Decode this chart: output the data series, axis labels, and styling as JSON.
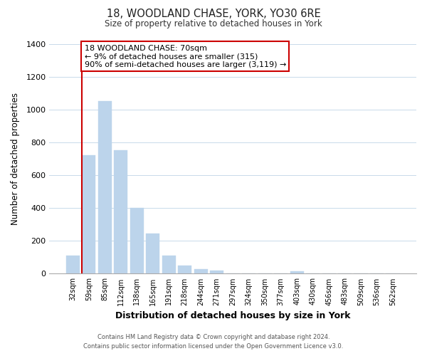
{
  "title": "18, WOODLAND CHASE, YORK, YO30 6RE",
  "subtitle": "Size of property relative to detached houses in York",
  "xlabel": "Distribution of detached houses by size in York",
  "ylabel": "Number of detached properties",
  "bar_color": "#bcd4eb",
  "bar_edge_color": "#bcd4eb",
  "categories": [
    "32sqm",
    "59sqm",
    "85sqm",
    "112sqm",
    "138sqm",
    "165sqm",
    "191sqm",
    "218sqm",
    "244sqm",
    "271sqm",
    "297sqm",
    "324sqm",
    "350sqm",
    "377sqm",
    "403sqm",
    "430sqm",
    "456sqm",
    "483sqm",
    "509sqm",
    "536sqm",
    "562sqm"
  ],
  "values": [
    110,
    720,
    1050,
    750,
    400,
    245,
    110,
    50,
    28,
    20,
    0,
    0,
    0,
    0,
    15,
    0,
    0,
    0,
    0,
    0,
    0
  ],
  "ylim": [
    0,
    1400
  ],
  "yticks": [
    0,
    200,
    400,
    600,
    800,
    1000,
    1200,
    1400
  ],
  "property_line_category_index": 1,
  "annotation_title": "18 WOODLAND CHASE: 70sqm",
  "annotation_line1": "← 9% of detached houses are smaller (315)",
  "annotation_line2": "90% of semi-detached houses are larger (3,119) →",
  "annotation_box_color": "#ffffff",
  "annotation_box_edgecolor": "#cc0000",
  "property_line_color": "#cc0000",
  "footer_line1": "Contains HM Land Registry data © Crown copyright and database right 2024.",
  "footer_line2": "Contains public sector information licensed under the Open Government Licence v3.0.",
  "background_color": "#ffffff",
  "grid_color": "#c8daea"
}
